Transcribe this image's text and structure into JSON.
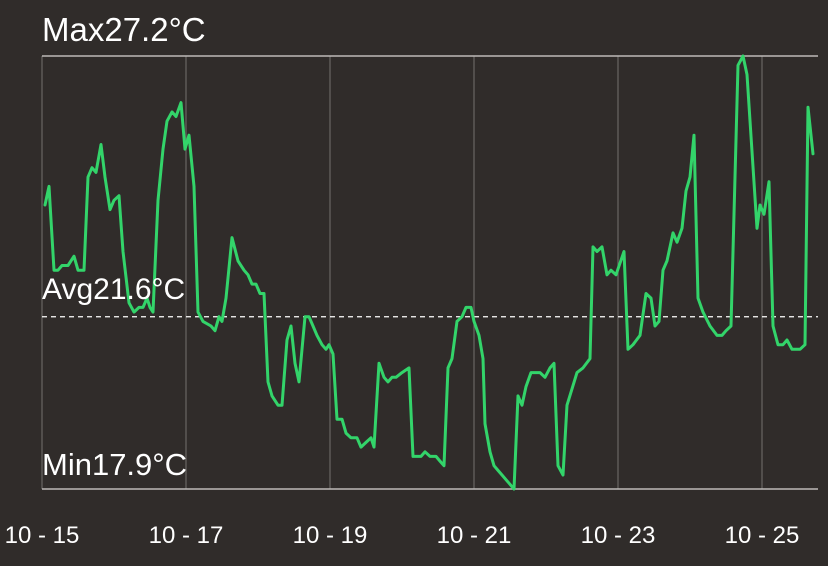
{
  "chart_data": {
    "type": "line",
    "max_label": "Max27.2°C",
    "avg_label": "Avg21.6°C",
    "min_label": "Min17.9°C",
    "max": 27.2,
    "avg": 21.6,
    "min": 17.9,
    "ylim": [
      17.9,
      27.2
    ],
    "xlim": [
      "10-15 00:00",
      "10-25 18:00"
    ],
    "x_ticks": [
      "10 - 15",
      "10 - 17",
      "10 - 19",
      "10 - 21",
      "10 - 23",
      "10 - 25"
    ],
    "x_tick_dates": [
      "10-15 00:00",
      "10-17 00:00",
      "10-19 00:00",
      "10-21 00:00",
      "10-23 00:00",
      "10-25 00:00"
    ],
    "grid": "vertical lines at ticks; solid max/min lines; dashed avg line",
    "colors": {
      "background": "#302c2a",
      "line": "#33d46a",
      "grid": "#6a6664",
      "text": "#ffffff"
    },
    "series": [
      {
        "points": [
          [
            "10-15 01:00",
            24.0
          ],
          [
            "10-15 02:20",
            24.4
          ],
          [
            "10-15 04:00",
            22.6
          ],
          [
            "10-15 05:20",
            22.6
          ],
          [
            "10-15 06:40",
            22.7
          ],
          [
            "10-15 08:40",
            22.7
          ],
          [
            "10-15 10:40",
            22.9
          ],
          [
            "10-15 12:00",
            22.6
          ],
          [
            "10-15 14:00",
            22.6
          ],
          [
            "10-15 15:20",
            24.6
          ],
          [
            "10-15 16:40",
            24.8
          ],
          [
            "10-15 18:00",
            24.7
          ],
          [
            "10-15 19:40",
            25.3
          ],
          [
            "10-15 21:00",
            24.6
          ],
          [
            "10-15 22:40",
            23.9
          ],
          [
            "10-16 00:00",
            24.1
          ],
          [
            "10-16 01:40",
            24.2
          ],
          [
            "10-16 03:00",
            23.0
          ],
          [
            "10-16 05:00",
            21.9
          ],
          [
            "10-16 06:40",
            21.7
          ],
          [
            "10-16 08:20",
            21.8
          ],
          [
            "10-16 09:40",
            21.8
          ],
          [
            "10-16 11:00",
            22.0
          ],
          [
            "10-16 12:00",
            21.8
          ],
          [
            "10-16 13:00",
            21.7
          ],
          [
            "10-16 14:40",
            24.1
          ],
          [
            "10-16 16:20",
            25.2
          ],
          [
            "10-16 17:40",
            25.8
          ],
          [
            "10-16 19:20",
            26.0
          ],
          [
            "10-16 20:40",
            25.9
          ],
          [
            "10-16 22:20",
            26.2
          ],
          [
            "10-16 23:40",
            25.2
          ],
          [
            "10-17 01:00",
            25.5
          ],
          [
            "10-17 02:40",
            24.4
          ],
          [
            "10-17 04:00",
            21.7
          ],
          [
            "10-17 05:40",
            21.5
          ],
          [
            "10-17 08:20",
            21.4
          ],
          [
            "10-17 09:40",
            21.3
          ],
          [
            "10-17 11:00",
            21.6
          ],
          [
            "10-17 12:00",
            21.5
          ],
          [
            "10-17 13:20",
            22.0
          ],
          [
            "10-17 15:20",
            23.3
          ],
          [
            "10-17 17:20",
            22.8
          ],
          [
            "10-17 19:20",
            22.6
          ],
          [
            "10-17 20:40",
            22.5
          ],
          [
            "10-17 22:00",
            22.3
          ],
          [
            "10-17 23:20",
            22.3
          ],
          [
            "10-18 00:40",
            22.1
          ],
          [
            "10-18 02:00",
            22.1
          ],
          [
            "10-18 03:20",
            20.2
          ],
          [
            "10-18 04:40",
            19.9
          ],
          [
            "10-18 06:40",
            19.7
          ],
          [
            "10-18 08:00",
            19.7
          ],
          [
            "10-18 09:40",
            21.1
          ],
          [
            "10-18 11:00",
            21.4
          ],
          [
            "10-18 12:20",
            20.6
          ],
          [
            "10-18 13:40",
            20.2
          ],
          [
            "10-18 15:40",
            21.6
          ],
          [
            "10-18 17:00",
            21.6
          ],
          [
            "10-18 18:20",
            21.4
          ],
          [
            "10-18 19:40",
            21.2
          ],
          [
            "10-18 21:20",
            21.0
          ],
          [
            "10-18 22:40",
            20.9
          ],
          [
            "10-18 23:40",
            21.0
          ],
          [
            "10-19 01:00",
            20.8
          ],
          [
            "10-19 02:20",
            19.4
          ],
          [
            "10-19 04:00",
            19.4
          ],
          [
            "10-19 05:20",
            19.1
          ],
          [
            "10-19 07:00",
            19.0
          ],
          [
            "10-19 09:00",
            19.0
          ],
          [
            "10-19 10:20",
            18.8
          ],
          [
            "10-19 12:00",
            18.9
          ],
          [
            "10-19 13:40",
            19.0
          ],
          [
            "10-19 14:40",
            18.8
          ],
          [
            "10-19 16:20",
            20.6
          ],
          [
            "10-19 18:00",
            20.3
          ],
          [
            "10-19 19:20",
            20.2
          ],
          [
            "10-19 20:40",
            20.3
          ],
          [
            "10-19 22:00",
            20.3
          ],
          [
            "10-20 00:00",
            20.4
          ],
          [
            "10-20 02:20",
            20.5
          ],
          [
            "10-20 03:40",
            18.6
          ],
          [
            "10-20 05:00",
            18.6
          ],
          [
            "10-20 06:20",
            18.6
          ],
          [
            "10-20 07:40",
            18.7
          ],
          [
            "10-20 09:20",
            18.6
          ],
          [
            "10-20 11:20",
            18.6
          ],
          [
            "10-20 12:40",
            18.5
          ],
          [
            "10-20 14:00",
            18.4
          ],
          [
            "10-20 15:20",
            20.5
          ],
          [
            "10-20 16:40",
            20.7
          ],
          [
            "10-20 18:20",
            21.5
          ],
          [
            "10-20 20:00",
            21.6
          ],
          [
            "10-20 21:20",
            21.8
          ],
          [
            "10-20 23:00",
            21.8
          ],
          [
            "10-21 00:00",
            21.5
          ],
          [
            "10-21 01:40",
            21.2
          ],
          [
            "10-21 03:00",
            20.7
          ],
          [
            "10-21 03:40",
            19.3
          ],
          [
            "10-21 05:20",
            18.7
          ],
          [
            "10-21 06:40",
            18.4
          ],
          [
            "10-21 08:00",
            18.3
          ],
          [
            "10-21 09:20",
            18.2
          ],
          [
            "10-21 10:40",
            18.1
          ],
          [
            "10-21 12:00",
            18.0
          ],
          [
            "10-21 13:20",
            17.9
          ],
          [
            "10-21 14:40",
            19.9
          ],
          [
            "10-21 16:00",
            19.7
          ],
          [
            "10-21 17:20",
            20.1
          ],
          [
            "10-21 19:00",
            20.4
          ],
          [
            "10-21 20:20",
            20.4
          ],
          [
            "10-21 22:00",
            20.4
          ],
          [
            "10-21 23:40",
            20.3
          ],
          [
            "10-22 01:20",
            20.5
          ],
          [
            "10-22 02:40",
            20.6
          ],
          [
            "10-22 04:00",
            18.4
          ],
          [
            "10-22 05:40",
            18.2
          ],
          [
            "10-22 07:00",
            19.7
          ],
          [
            "10-22 10:20",
            20.4
          ],
          [
            "10-22 12:20",
            20.5
          ],
          [
            "10-22 14:40",
            20.7
          ],
          [
            "10-22 15:40",
            23.1
          ],
          [
            "10-22 17:00",
            23.0
          ],
          [
            "10-22 18:40",
            23.1
          ],
          [
            "10-22 20:20",
            22.5
          ],
          [
            "10-22 21:40",
            22.6
          ],
          [
            "10-22 23:20",
            22.5
          ],
          [
            "10-23 02:00",
            23.0
          ],
          [
            "10-23 03:20",
            20.9
          ],
          [
            "10-23 05:00",
            21.0
          ],
          [
            "10-23 07:20",
            21.2
          ],
          [
            "10-23 09:20",
            22.1
          ],
          [
            "10-23 11:00",
            22.0
          ],
          [
            "10-23 12:20",
            21.4
          ],
          [
            "10-23 13:40",
            21.5
          ],
          [
            "10-23 15:00",
            22.6
          ],
          [
            "10-23 16:20",
            22.8
          ],
          [
            "10-23 18:20",
            23.4
          ],
          [
            "10-23 19:40",
            23.2
          ],
          [
            "10-23 21:20",
            23.5
          ],
          [
            "10-23 22:40",
            24.3
          ],
          [
            "10-24 00:00",
            24.6
          ],
          [
            "10-24 01:20",
            25.5
          ],
          [
            "10-24 02:40",
            22.0
          ],
          [
            "10-24 04:20",
            21.7
          ],
          [
            "10-24 06:40",
            21.4
          ],
          [
            "10-24 09:00",
            21.2
          ],
          [
            "10-24 10:40",
            21.2
          ],
          [
            "10-24 12:00",
            21.3
          ],
          [
            "10-24 13:40",
            21.4
          ],
          [
            "10-24 16:00",
            27.0
          ],
          [
            "10-24 17:40",
            27.2
          ],
          [
            "10-24 19:00",
            26.8
          ],
          [
            "10-24 22:20",
            23.5
          ],
          [
            "10-24 23:20",
            24.0
          ],
          [
            "10-25 00:40",
            23.8
          ],
          [
            "10-25 02:20",
            24.5
          ],
          [
            "10-25 03:40",
            21.4
          ],
          [
            "10-25 05:20",
            21.0
          ],
          [
            "10-25 07:00",
            21.0
          ],
          [
            "10-25 08:20",
            21.1
          ],
          [
            "10-25 10:00",
            20.9
          ],
          [
            "10-25 12:40",
            20.9
          ],
          [
            "10-25 14:20",
            21.0
          ],
          [
            "10-25 15:20",
            26.1
          ],
          [
            "10-25 17:00",
            25.1
          ]
        ]
      }
    ]
  }
}
